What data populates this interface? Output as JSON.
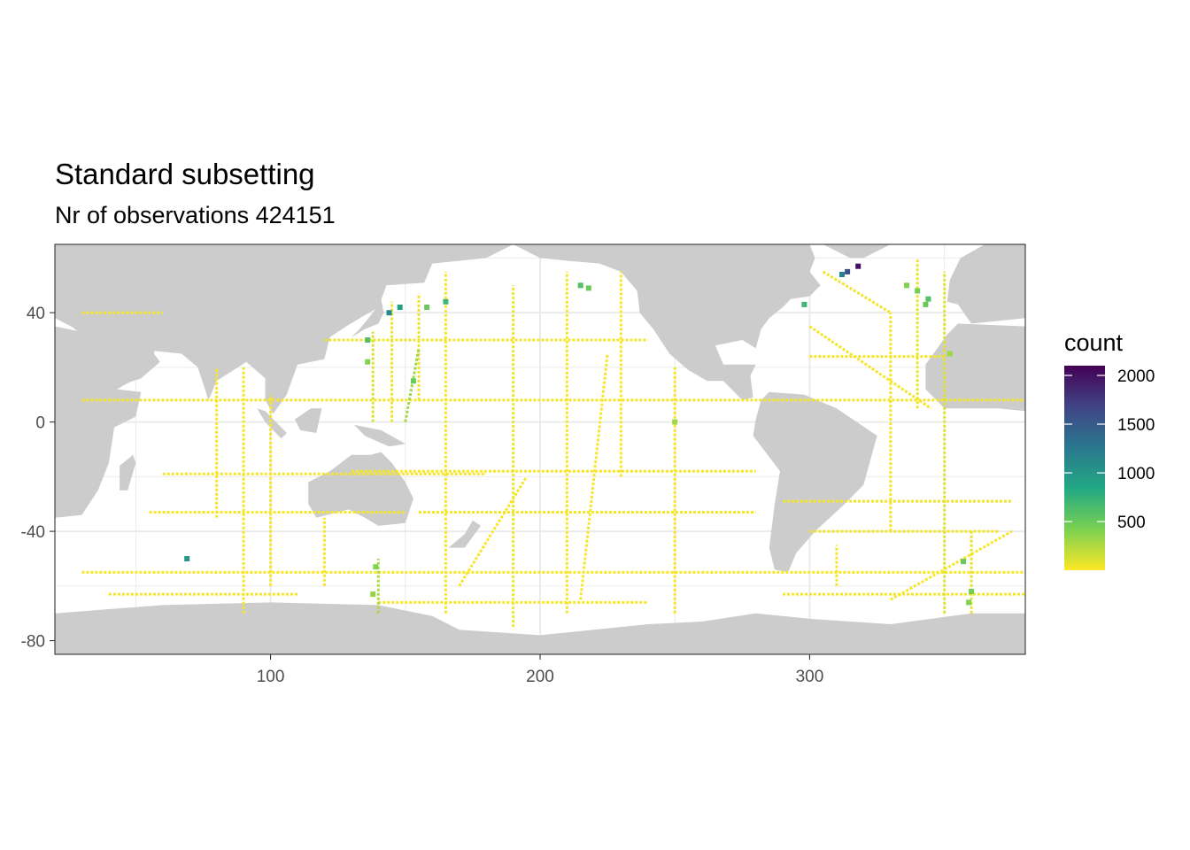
{
  "chart_data": {
    "type": "heatmap",
    "title": "Standard subsetting",
    "subtitle": "Nr of observations 424151",
    "xlabel": "",
    "ylabel": "",
    "xlim": [
      20,
      380
    ],
    "ylim": [
      -85,
      65
    ],
    "x_ticks": [
      100,
      200,
      300
    ],
    "y_ticks": [
      -80,
      -40,
      0,
      40
    ],
    "grid": true,
    "land_color": "#cccccc",
    "ocean_color": "#ffffff",
    "legend": {
      "title": "count",
      "position": "right",
      "scale": "viridis (reversed)",
      "range": [
        1,
        2100
      ],
      "breaks": [
        2000,
        1500,
        1000,
        500
      ]
    },
    "colors": {
      "low": "#fde725",
      "mid_low": "#7ad151",
      "mid": "#22a884",
      "mid_high": "#2a788e",
      "high_mid": "#414487",
      "high": "#440154"
    },
    "tracks": [
      {
        "from": [
          30,
          8
        ],
        "to": [
          380,
          8
        ],
        "count": 30
      },
      {
        "from": [
          60,
          -19
        ],
        "to": [
          180,
          -19
        ],
        "count": 25
      },
      {
        "from": [
          55,
          -33
        ],
        "to": [
          150,
          -33
        ],
        "count": 20
      },
      {
        "from": [
          155,
          -33
        ],
        "to": [
          280,
          -33
        ],
        "count": 20
      },
      {
        "from": [
          130,
          -18
        ],
        "to": [
          280,
          -18
        ],
        "count": 15
      },
      {
        "from": [
          120,
          30
        ],
        "to": [
          240,
          30
        ],
        "count": 40
      },
      {
        "from": [
          300,
          24
        ],
        "to": [
          350,
          24
        ],
        "count": 35
      },
      {
        "from": [
          300,
          -40
        ],
        "to": [
          370,
          -40
        ],
        "count": 40
      },
      {
        "from": [
          290,
          -29
        ],
        "to": [
          375,
          -29
        ],
        "count": 30
      },
      {
        "from": [
          40,
          -63
        ],
        "to": [
          110,
          -63
        ],
        "count": 30
      },
      {
        "from": [
          140,
          -66
        ],
        "to": [
          240,
          -66
        ],
        "count": 20
      },
      {
        "from": [
          290,
          -63
        ],
        "to": [
          380,
          -63
        ],
        "count": 25
      },
      {
        "from": [
          30,
          -55
        ],
        "to": [
          380,
          -55
        ],
        "count": 15
      },
      {
        "from": [
          30,
          40
        ],
        "to": [
          60,
          40
        ],
        "count": 20
      },
      {
        "from": [
          138,
          0
        ],
        "to": [
          138,
          33
        ],
        "count": 110
      },
      {
        "from": [
          145,
          0
        ],
        "to": [
          145,
          44
        ],
        "count": 60
      },
      {
        "from": [
          155,
          8
        ],
        "to": [
          155,
          47
        ],
        "count": 60
      },
      {
        "from": [
          165,
          -70
        ],
        "to": [
          165,
          55
        ],
        "count": 30
      },
      {
        "from": [
          190,
          -75
        ],
        "to": [
          190,
          50
        ],
        "count": 40
      },
      {
        "from": [
          210,
          -70
        ],
        "to": [
          210,
          55
        ],
        "count": 25
      },
      {
        "from": [
          230,
          -20
        ],
        "to": [
          230,
          55
        ],
        "count": 15
      },
      {
        "from": [
          250,
          -70
        ],
        "to": [
          250,
          20
        ],
        "count": 30
      },
      {
        "from": [
          90,
          -70
        ],
        "to": [
          90,
          20
        ],
        "count": 20
      },
      {
        "from": [
          80,
          -35
        ],
        "to": [
          80,
          20
        ],
        "count": 20
      },
      {
        "from": [
          100,
          -60
        ],
        "to": [
          100,
          10
        ],
        "count": 20
      },
      {
        "from": [
          140,
          -70
        ],
        "to": [
          140,
          -50
        ],
        "count": 250
      },
      {
        "from": [
          120,
          -60
        ],
        "to": [
          120,
          -35
        ],
        "count": 20
      },
      {
        "from": [
          350,
          -70
        ],
        "to": [
          350,
          55
        ],
        "count": 90
      },
      {
        "from": [
          340,
          5
        ],
        "to": [
          340,
          60
        ],
        "count": 60
      },
      {
        "from": [
          330,
          -40
        ],
        "to": [
          330,
          40
        ],
        "count": 30
      },
      {
        "from": [
          310,
          -60
        ],
        "to": [
          310,
          -45
        ],
        "count": 20
      },
      {
        "from": [
          360,
          -70
        ],
        "to": [
          360,
          -40
        ],
        "count": 80
      },
      {
        "from": [
          170,
          -60
        ],
        "to": [
          195,
          -20
        ],
        "count": 20
      },
      {
        "from": [
          215,
          -65
        ],
        "to": [
          225,
          25
        ],
        "count": 20
      },
      {
        "from": [
          330,
          -65
        ],
        "to": [
          375,
          -40
        ],
        "count": 20
      },
      {
        "from": [
          300,
          35
        ],
        "to": [
          345,
          5
        ],
        "count": 30
      },
      {
        "from": [
          305,
          55
        ],
        "to": [
          330,
          40
        ],
        "count": 40
      },
      {
        "from": [
          150,
          0
        ],
        "to": [
          155,
          27
        ],
        "count": 300
      }
    ],
    "hotspots": [
      {
        "x": 318,
        "y": 57,
        "count": 2000
      },
      {
        "x": 314,
        "y": 55,
        "count": 1600
      },
      {
        "x": 312,
        "y": 54,
        "count": 1200
      },
      {
        "x": 148,
        "y": 42,
        "count": 900
      },
      {
        "x": 144,
        "y": 40,
        "count": 1100
      },
      {
        "x": 165,
        "y": 44,
        "count": 700
      },
      {
        "x": 158,
        "y": 42,
        "count": 500
      },
      {
        "x": 136,
        "y": 30,
        "count": 600
      },
      {
        "x": 136,
        "y": 22,
        "count": 400
      },
      {
        "x": 153,
        "y": 15,
        "count": 500
      },
      {
        "x": 215,
        "y": 50,
        "count": 600
      },
      {
        "x": 218,
        "y": 49,
        "count": 500
      },
      {
        "x": 298,
        "y": 43,
        "count": 700
      },
      {
        "x": 344,
        "y": 45,
        "count": 600
      },
      {
        "x": 343,
        "y": 43,
        "count": 500
      },
      {
        "x": 340,
        "y": 48,
        "count": 450
      },
      {
        "x": 336,
        "y": 50,
        "count": 400
      },
      {
        "x": 69,
        "y": -50,
        "count": 1000
      },
      {
        "x": 139,
        "y": -53,
        "count": 400
      },
      {
        "x": 138,
        "y": -63,
        "count": 350
      },
      {
        "x": 357,
        "y": -51,
        "count": 500
      },
      {
        "x": 360,
        "y": -62,
        "count": 450
      },
      {
        "x": 359,
        "y": -66,
        "count": 400
      },
      {
        "x": 250,
        "y": 0,
        "count": 300
      },
      {
        "x": 352,
        "y": 25,
        "count": 300
      }
    ]
  }
}
